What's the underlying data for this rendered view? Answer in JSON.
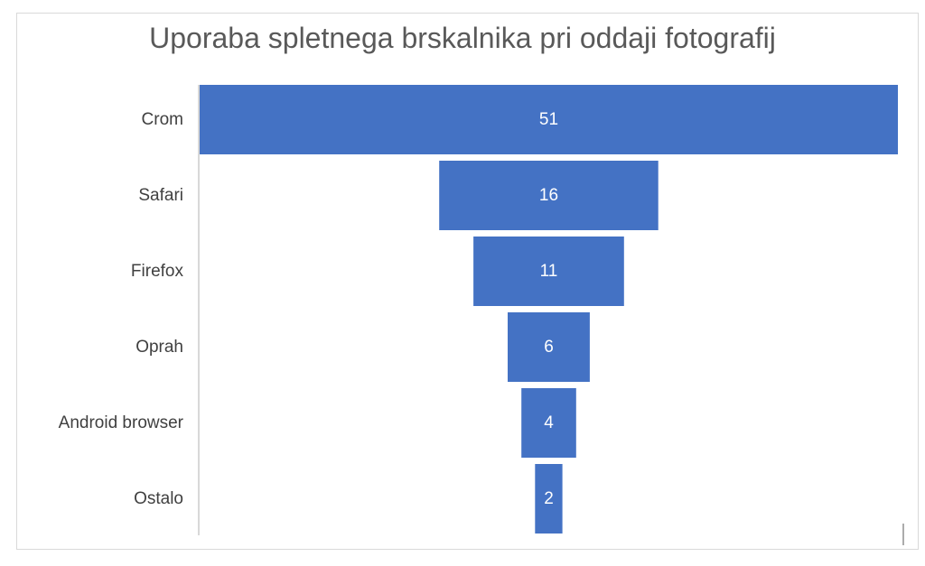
{
  "chart_data": {
    "type": "bar",
    "subtype": "funnel",
    "title": "Uporaba spletnega brskalnika pri oddaji fotografij",
    "categories": [
      "Crom",
      "Safari",
      "Firefox",
      "Oprah",
      "Android browser",
      "Ostalo"
    ],
    "values": [
      51,
      16,
      11,
      6,
      4,
      2
    ],
    "data_labels": [
      "51",
      "16",
      "11",
      "6",
      "4",
      "2"
    ],
    "bar_color": "#4472c4",
    "legend": "none",
    "grid": false
  }
}
